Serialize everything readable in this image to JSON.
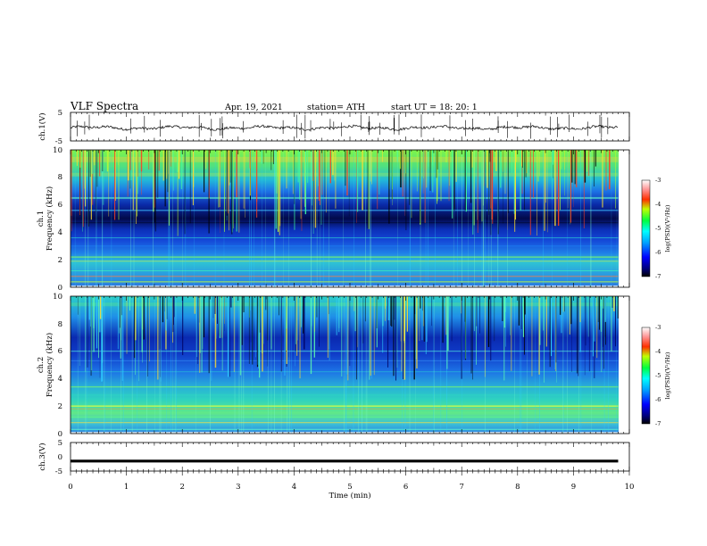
{
  "header": {
    "title": "VLF  Spectra",
    "date": "Apr. 19, 2021",
    "station": "station= ATH",
    "start": "start  UT  =    18: 20: 1"
  },
  "chart_data": [
    {
      "type": "line",
      "panel": "ch1-waveform",
      "ylabel": "ch.1(V)",
      "ylim": [
        -5,
        5
      ],
      "ytick_labels": [
        "5",
        "-5"
      ],
      "x_range_min": [
        0,
        9.8
      ],
      "color": "#000000"
    },
    {
      "type": "heatmap",
      "panel": "ch1-spectrogram",
      "ylabel": "ch.1\nFrequency  (kHz)",
      "ylim": [
        0,
        10
      ],
      "ytick_labels": [
        "0",
        "2",
        "4",
        "6",
        "8",
        "10"
      ],
      "x_range_min": [
        0,
        9.8
      ],
      "colorbar": {
        "label": "log(PSD)(V²/Hz)",
        "range": [
          -7,
          -3
        ],
        "tick_labels": [
          "-3",
          "-4",
          "-5",
          "-6",
          "-7"
        ]
      }
    },
    {
      "type": "heatmap",
      "panel": "ch2-spectrogram",
      "ylabel": "ch.2\nFrequency  (kHz)",
      "ylim": [
        0,
        10
      ],
      "ytick_labels": [
        "0",
        "2",
        "4",
        "6",
        "8",
        "10"
      ],
      "x_range_min": [
        0,
        9.8
      ],
      "colorbar": {
        "label": "log(PSD)(V²/Hz)",
        "range": [
          -7,
          -3
        ],
        "tick_labels": [
          "-3",
          "-4",
          "-5",
          "-6",
          "-7"
        ]
      }
    },
    {
      "type": "line",
      "panel": "ch3-waveform",
      "ylabel": "ch.3(V)",
      "ylim": [
        -5,
        5
      ],
      "ytick_labels": [
        "5",
        "0",
        "-5"
      ],
      "x_range_min": [
        0,
        9.8
      ],
      "level": -1.5,
      "color": "#000000"
    }
  ],
  "xaxis": {
    "label": "Time  (min)",
    "xlim": [
      0,
      10
    ],
    "tick_labels": [
      "0",
      "1",
      "2",
      "3",
      "4",
      "5",
      "6",
      "7",
      "8",
      "9",
      "10"
    ]
  }
}
